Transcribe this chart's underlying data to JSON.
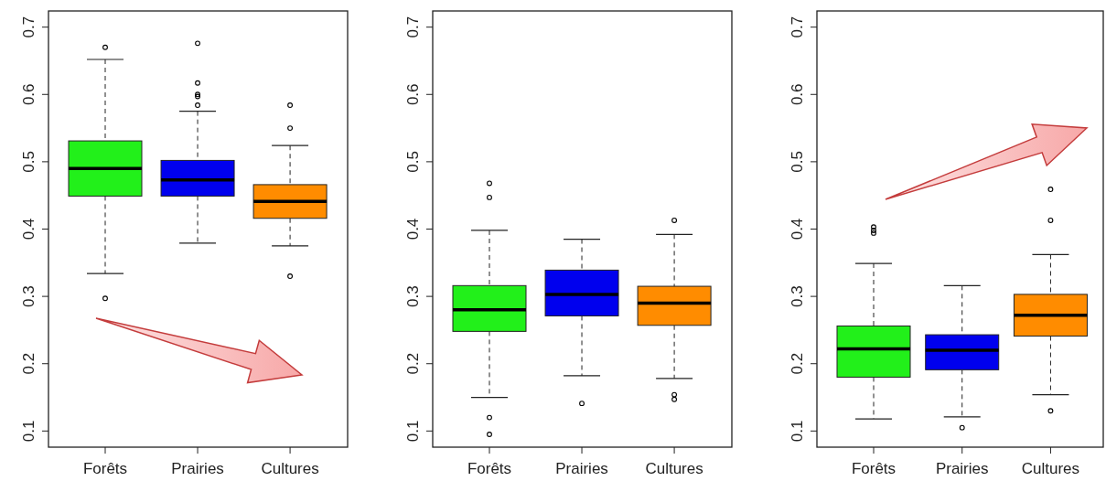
{
  "chart_data": [
    {
      "type": "box",
      "categories": [
        "Forêts",
        "Prairies",
        "Cultures"
      ],
      "colors": [
        "#22f01a",
        "#0000ee",
        "#ff8c00"
      ],
      "ylim": [
        0.076,
        0.724
      ],
      "yticks": [
        0.1,
        0.2,
        0.3,
        0.4,
        0.5,
        0.6,
        0.7
      ],
      "boxes": [
        {
          "low": 0.334,
          "q1": 0.449,
          "median": 0.49,
          "q3": 0.531,
          "high": 0.652,
          "outliers": [
            0.67,
            0.297
          ]
        },
        {
          "low": 0.379,
          "q1": 0.449,
          "median": 0.473,
          "q3": 0.502,
          "high": 0.575,
          "outliers": [
            0.676,
            0.617,
            0.6,
            0.597,
            0.584
          ]
        },
        {
          "low": 0.375,
          "q1": 0.416,
          "median": 0.441,
          "q3": 0.466,
          "high": 0.524,
          "outliers": [
            0.584,
            0.55,
            0.33
          ]
        }
      ]
    },
    {
      "type": "box",
      "categories": [
        "Forêts",
        "Prairies",
        "Cultures"
      ],
      "colors": [
        "#22f01a",
        "#0000ee",
        "#ff8c00"
      ],
      "ylim": [
        0.076,
        0.724
      ],
      "yticks": [
        0.1,
        0.2,
        0.3,
        0.4,
        0.5,
        0.6,
        0.7
      ],
      "boxes": [
        {
          "low": 0.15,
          "q1": 0.248,
          "median": 0.28,
          "q3": 0.316,
          "high": 0.398,
          "outliers": [
            0.468,
            0.447,
            0.12,
            0.095
          ]
        },
        {
          "low": 0.182,
          "q1": 0.271,
          "median": 0.303,
          "q3": 0.339,
          "high": 0.385,
          "outliers": [
            0.141
          ]
        },
        {
          "low": 0.178,
          "q1": 0.257,
          "median": 0.29,
          "q3": 0.315,
          "high": 0.392,
          "outliers": [
            0.413,
            0.154,
            0.147
          ]
        }
      ]
    },
    {
      "type": "box",
      "categories": [
        "Forêts",
        "Prairies",
        "Cultures"
      ],
      "colors": [
        "#22f01a",
        "#0000ee",
        "#ff8c00"
      ],
      "ylim": [
        0.076,
        0.724
      ],
      "yticks": [
        0.1,
        0.2,
        0.3,
        0.4,
        0.5,
        0.6,
        0.7
      ],
      "boxes": [
        {
          "low": 0.118,
          "q1": 0.18,
          "median": 0.222,
          "q3": 0.256,
          "high": 0.349,
          "outliers": [
            0.403,
            0.398,
            0.394
          ]
        },
        {
          "low": 0.121,
          "q1": 0.191,
          "median": 0.22,
          "q3": 0.243,
          "high": 0.316,
          "outliers": [
            0.105
          ]
        },
        {
          "low": 0.154,
          "q1": 0.241,
          "median": 0.272,
          "q3": 0.303,
          "high": 0.362,
          "outliers": [
            0.459,
            0.413,
            0.13
          ]
        }
      ]
    }
  ]
}
